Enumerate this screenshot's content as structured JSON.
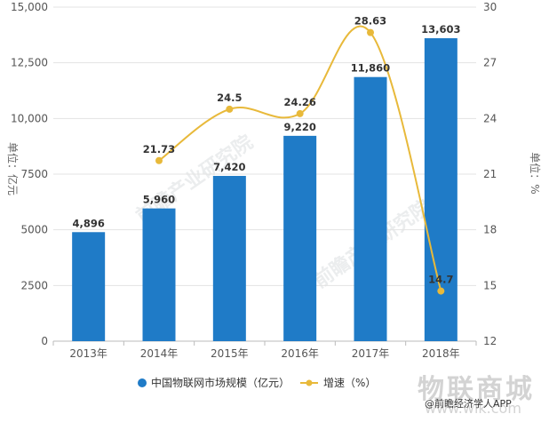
{
  "chart_data": {
    "type": "bar",
    "categories": [
      "2013年",
      "2014年",
      "2015年",
      "2016年",
      "2017年",
      "2018年"
    ],
    "series": [
      {
        "name": "中国物联网市场规模（亿元）",
        "type": "bar",
        "axis": "left",
        "color": "#1f7bc7",
        "values": [
          4896,
          5960,
          7420,
          9220,
          11860,
          13603
        ],
        "labels": [
          "4,896",
          "5,960",
          "7,420",
          "9,220",
          "11,860",
          "13,603"
        ]
      },
      {
        "name": "增速（%）",
        "type": "line",
        "axis": "right",
        "color": "#e8b93a",
        "values": [
          null,
          21.73,
          24.5,
          24.26,
          28.63,
          14.7
        ],
        "labels": [
          "",
          "21.73",
          "24.5",
          "24.26",
          "28.63",
          "14.7"
        ]
      }
    ],
    "ylabel": "单位：亿元",
    "ylabel_right": "单位：%",
    "ylim": [
      0,
      15000
    ],
    "ylim_right": [
      12,
      30
    ],
    "yticks": [
      "0",
      "2500",
      "5000",
      "7500",
      "10,000",
      "12,500",
      "15,000"
    ],
    "yticks_right": [
      "12",
      "15",
      "18",
      "21",
      "24",
      "27",
      "30"
    ],
    "grid": true,
    "legend_position": "bottom"
  },
  "source": "@前瞻经济学人APP",
  "watermarks": {
    "center": "前瞻产业研究院",
    "brand": "物联商城",
    "url": "www.wlk.com"
  }
}
